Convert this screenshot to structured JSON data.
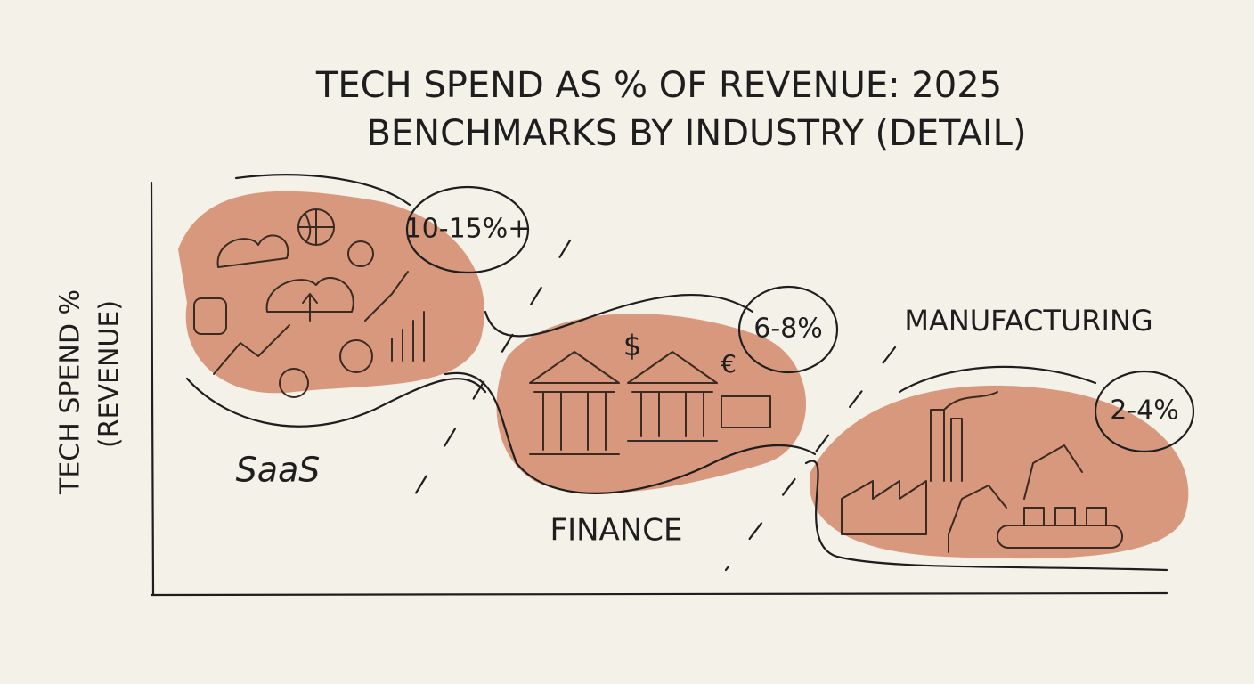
{
  "title": {
    "line1": "TECH SPEND AS % OF REVENUE: 2025",
    "line2": "BENCHMARKS BY INDUSTRY (DETAIL)"
  },
  "y_axis_label": {
    "line1": "TECH SPEND %",
    "line2": "(REVENUE)"
  },
  "segments": [
    {
      "label": "SaaS",
      "range": "10-15%+"
    },
    {
      "label": "FINANCE",
      "range": "6-8%"
    },
    {
      "label": "MANUFACTURING",
      "range": "2-4%"
    }
  ]
}
